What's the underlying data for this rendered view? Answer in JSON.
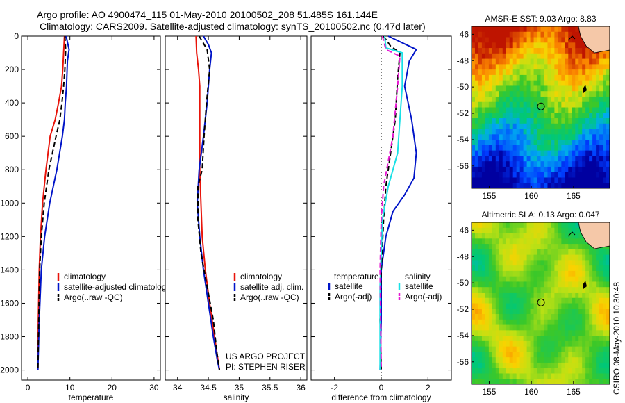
{
  "header": {
    "title_line1": "Argo profile: AO 4900474_115 01-May-2010 20100502_208 51.485S 161.144E",
    "title_line2": "Climatology: CARS2009. Satellite-adjusted climatology: synTS_20100502.nc (0.47d later)"
  },
  "side_label": "CSIRO 08-May-2010 10:30:48",
  "colors": {
    "red": "#e8140a",
    "blue": "#0014c8",
    "black": "#000000",
    "cyan": "#19e0e6",
    "magenta": "#e619d2"
  },
  "chart_data": [
    {
      "type": "line",
      "xlabel": "temperature",
      "ylabel": "",
      "xlim": [
        -1.5,
        31.5
      ],
      "ylim": [
        2060,
        0
      ],
      "y_reversed": true,
      "xticks": [
        0,
        10,
        20,
        30
      ],
      "yticks": [
        0,
        200,
        400,
        600,
        800,
        1000,
        1200,
        1400,
        1600,
        1800,
        2000
      ],
      "legend": {
        "placement": "lower-center",
        "entries": [
          "climatology",
          "satellite-adjusted climatology",
          "Argo(..raw -QC)"
        ]
      },
      "series": [
        {
          "name": "climatology",
          "color": "red",
          "style": "solid",
          "x": [
            8.7,
            8.5,
            8.3,
            8.0,
            7.3,
            6.5,
            5.3,
            4.3,
            3.5,
            3.0,
            2.7,
            2.5,
            2.4
          ],
          "y": [
            0,
            100,
            200,
            300,
            400,
            500,
            600,
            800,
            1000,
            1200,
            1400,
            1700,
            2000
          ]
        },
        {
          "name": "satellite-adjusted climatology",
          "color": "blue",
          "style": "solid",
          "x": [
            9.1,
            9.8,
            9.4,
            9.2,
            8.9,
            8.7,
            8.2,
            6.9,
            5.2,
            4.0,
            3.2,
            2.7,
            2.4
          ],
          "y": [
            0,
            80,
            150,
            300,
            400,
            500,
            600,
            800,
            1000,
            1200,
            1400,
            1700,
            2000
          ]
        },
        {
          "name": "Argo(..raw -QC)",
          "color": "black",
          "style": "dashed",
          "x": [
            8.8,
            9.0,
            8.8,
            8.5,
            8.1,
            7.6,
            6.7,
            5.0,
            3.9,
            3.2,
            2.8,
            2.6,
            2.4
          ],
          "y": [
            0,
            80,
            200,
            300,
            400,
            500,
            600,
            800,
            1000,
            1200,
            1400,
            1700,
            2000
          ]
        }
      ]
    },
    {
      "type": "line",
      "xlabel": "salinity",
      "ylabel": "",
      "xlim": [
        33.8,
        36.1
      ],
      "ylim": [
        2060,
        0
      ],
      "y_reversed": true,
      "xticks": [
        34,
        34.5,
        35,
        35.5,
        36
      ],
      "tick_labels": [
        "34",
        "34.5",
        "35",
        "35.5",
        "36"
      ],
      "legend": {
        "placement": "lower-right",
        "entries": [
          "climatology",
          "satellite adj. clim.",
          "Argo(..raw -QC)"
        ]
      },
      "annotation": [
        "US ARGO PROJECT",
        "PI: STEPHEN RISER"
      ],
      "series": [
        {
          "name": "climatology",
          "color": "red",
          "style": "solid",
          "x": [
            34.3,
            34.31,
            34.34,
            34.36,
            34.36,
            34.36,
            34.38,
            34.4,
            34.45,
            34.52,
            34.6,
            34.66,
            34.68
          ],
          "y": [
            0,
            100,
            200,
            300,
            500,
            800,
            1000,
            1200,
            1400,
            1600,
            1800,
            1950,
            2000
          ]
        },
        {
          "name": "satellite adj. clim.",
          "color": "blue",
          "style": "solid",
          "x": [
            34.42,
            34.5,
            34.55,
            34.52,
            34.48,
            34.42,
            34.35,
            34.32,
            34.36,
            34.42,
            34.5,
            34.58,
            34.65,
            34.68
          ],
          "y": [
            0,
            50,
            100,
            200,
            400,
            600,
            800,
            1000,
            1200,
            1400,
            1600,
            1800,
            1950,
            2000
          ]
        },
        {
          "name": "Argo(..raw -QC)",
          "color": "black",
          "style": "dashed",
          "x": [
            34.35,
            34.48,
            34.52,
            34.47,
            34.43,
            34.4,
            34.33,
            34.33,
            34.38,
            34.48,
            34.58,
            34.64,
            34.68
          ],
          "y": [
            0,
            80,
            200,
            400,
            600,
            800,
            900,
            1100,
            1300,
            1500,
            1700,
            1900,
            2000
          ]
        }
      ]
    },
    {
      "type": "line",
      "xlabel": "difference from climatology",
      "ylabel": "",
      "xlim": [
        -3.0,
        3.0
      ],
      "ylim": [
        2060,
        0
      ],
      "y_reversed": true,
      "xticks": [
        -2,
        0,
        2
      ],
      "zero_line": "dotted",
      "legend": {
        "placement": "lower-center",
        "groups": [
          {
            "heading": "temperature",
            "entries": [
              "satellite",
              "Argo(-adj)"
            ]
          },
          {
            "heading": "salinity",
            "entries": [
              "satellite",
              "Argo(-adj)"
            ]
          }
        ]
      },
      "series": [
        {
          "name": "satellite",
          "group": "temperature",
          "color": "blue",
          "style": "solid",
          "x": [
            0.3,
            1.5,
            1.2,
            1.0,
            1.3,
            1.5,
            1.4,
            1.0,
            0.5,
            0.2,
            0.0,
            0.0,
            -0.05
          ],
          "y": [
            0,
            80,
            150,
            300,
            500,
            700,
            850,
            950,
            1050,
            1200,
            1400,
            1700,
            2000
          ]
        },
        {
          "name": "Argo(-adj)",
          "group": "temperature",
          "color": "black",
          "style": "dashed",
          "x": [
            0.1,
            0.4,
            0.8,
            0.7,
            0.6,
            0.4,
            0.2,
            0.1,
            0.0,
            -0.05,
            0.0
          ],
          "y": [
            0,
            60,
            100,
            250,
            500,
            700,
            900,
            1100,
            1400,
            1700,
            2000
          ]
        },
        {
          "name": "satellite",
          "group": "salinity",
          "color": "cyan",
          "style": "solid",
          "x": [
            0.15,
            0.2,
            0.9,
            0.9,
            0.8,
            0.7,
            0.3,
            0.05,
            -0.05,
            -0.05
          ],
          "y": [
            0,
            70,
            100,
            300,
            500,
            700,
            900,
            1100,
            1500,
            2000
          ]
        },
        {
          "name": "Argo(-adj)",
          "group": "salinity",
          "color": "magenta",
          "style": "dashed",
          "x": [
            0.05,
            0.2,
            0.8,
            0.7,
            0.5,
            0.1,
            0.0,
            -0.05,
            0.0
          ],
          "y": [
            0,
            80,
            120,
            300,
            600,
            900,
            1100,
            1400,
            2000
          ]
        }
      ]
    },
    {
      "type": "heatmap",
      "title": "AMSR-E SST: 9.03 Argo: 8.83",
      "xlim": [
        152.9,
        169.3
      ],
      "ylim": [
        -57.7,
        -45.4
      ],
      "xticks": [
        155,
        160,
        165
      ],
      "yticks": [
        -46,
        -48,
        -50,
        -52,
        -54,
        -56
      ],
      "marker": {
        "lon": 161.144,
        "lat": -51.485
      }
    },
    {
      "type": "heatmap",
      "title": "Altimetric SLA: 0.13 Argo: 0.047",
      "xlim": [
        152.9,
        169.3
      ],
      "ylim": [
        -57.7,
        -45.4
      ],
      "xticks": [
        155,
        160,
        165
      ],
      "yticks": [
        -46,
        -48,
        -50,
        -52,
        -54,
        -56
      ],
      "marker": {
        "lon": 161.144,
        "lat": -51.485
      }
    }
  ]
}
